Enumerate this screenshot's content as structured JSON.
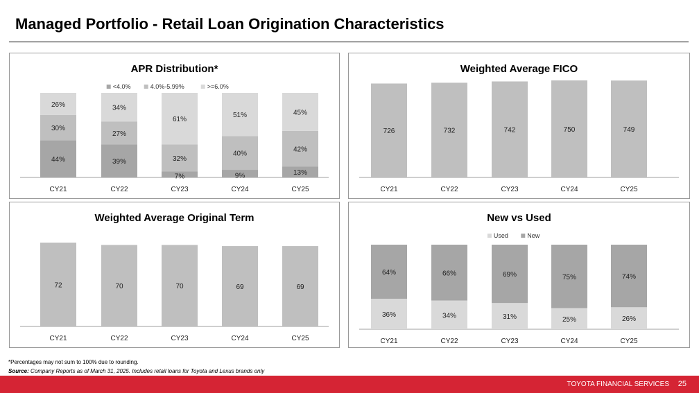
{
  "page": {
    "title": "Managed Portfolio - Retail Loan Origination Characteristics",
    "footnote": "*Percentages may not sum to 100% due to rounding.",
    "source_label": "Source:",
    "source_text": " Company Reports as of March 31, 2025. Includes retail loans for Toyota and Lexus brands only",
    "footer_brand": "TOYOTA FINANCIAL SERVICES",
    "page_number": "25"
  },
  "chart_data": [
    {
      "type": "bar",
      "stacked": true,
      "title": "APR Distribution*",
      "categories": [
        "CY21",
        "CY22",
        "CY23",
        "CY24",
        "CY25"
      ],
      "legend": "top",
      "series": [
        {
          "name": "<4.0%",
          "values": [
            44,
            39,
            7,
            9,
            13
          ],
          "color": "#a6a6a6"
        },
        {
          "name": "4.0%-5.99%",
          "values": [
            30,
            27,
            32,
            40,
            42
          ],
          "color": "#bfbfbf"
        },
        {
          "name": ">=6.0%",
          "values": [
            26,
            34,
            61,
            51,
            45
          ],
          "color": "#d9d9d9"
        }
      ],
      "ylim": [
        0,
        100
      ],
      "unit": "%"
    },
    {
      "type": "bar",
      "title": "Weighted Average FICO",
      "categories": [
        "CY21",
        "CY22",
        "CY23",
        "CY24",
        "CY25"
      ],
      "series": [
        {
          "name": "FICO",
          "values": [
            726,
            732,
            742,
            750,
            749
          ],
          "color": "#bfbfbf"
        }
      ],
      "ylim": [
        0,
        750
      ],
      "unit": ""
    },
    {
      "type": "bar",
      "title": "Weighted Average Original Term",
      "categories": [
        "CY21",
        "CY22",
        "CY23",
        "CY24",
        "CY25"
      ],
      "series": [
        {
          "name": "Term",
          "values": [
            72,
            70,
            70,
            69,
            69
          ],
          "color": "#bfbfbf"
        }
      ],
      "ylim": [
        0,
        72
      ],
      "unit": ""
    },
    {
      "type": "bar",
      "stacked": true,
      "title": "New vs Used",
      "categories": [
        "CY21",
        "CY22",
        "CY23",
        "CY24",
        "CY25"
      ],
      "legend": "top",
      "series": [
        {
          "name": "Used",
          "values": [
            36,
            34,
            31,
            25,
            26
          ],
          "color": "#d9d9d9"
        },
        {
          "name": "New",
          "values": [
            64,
            66,
            69,
            75,
            74
          ],
          "color": "#a6a6a6"
        }
      ],
      "ylim": [
        0,
        100
      ],
      "unit": "%"
    }
  ]
}
